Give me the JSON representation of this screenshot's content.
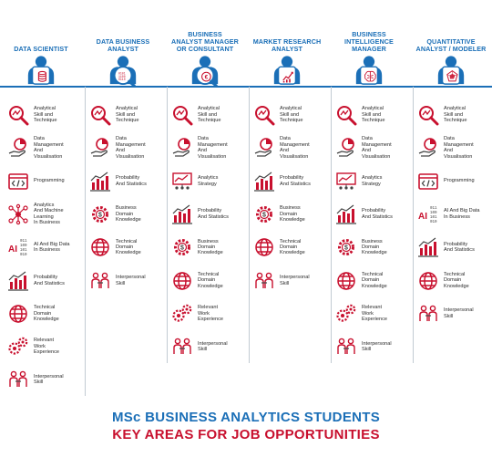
{
  "columns": [
    {
      "title": "DATA SCIENTIST",
      "badge": "database-icon",
      "items": [
        {
          "label": "Analytical\nSkill and\nTechnique",
          "icon": "magnifier-chart-icon"
        },
        {
          "label": "Data\nManagement\nAnd\nVisualisation",
          "icon": "hand-pie-chart-icon"
        },
        {
          "label": "Programming",
          "icon": "code-window-icon"
        },
        {
          "label": "Analytics\nAnd Machine\nLearning\nIn Business",
          "icon": "brain-network-icon"
        },
        {
          "label": "AI And Big Data\nIn Business",
          "icon": "ai-binary-icon"
        },
        {
          "label": "Probability\nAnd Statistics",
          "icon": "bar-chart-icon"
        },
        {
          "label": "Technical\nDomain\nKnowledge",
          "icon": "globe-icon"
        },
        {
          "label": "Relevant\nWork\nExperience",
          "icon": "gears-icon"
        },
        {
          "label": "Interpersonal\nSkill",
          "icon": "people-icon"
        }
      ]
    },
    {
      "title": "DATA BUSINESS\nANALYST",
      "badge": "binary-magnifier-icon",
      "items": [
        {
          "label": "Analytical\nSkill and\nTechnique",
          "icon": "magnifier-chart-icon"
        },
        {
          "label": "Data\nManagement\nAnd\nVisualisation",
          "icon": "hand-pie-chart-icon"
        },
        {
          "label": "Probability\nAnd Statistics",
          "icon": "bar-chart-icon"
        },
        {
          "label": "Business\nDomain\nKnowledge",
          "icon": "gear-dollar-icon"
        },
        {
          "label": "Technical\nDomain\nKnowledge",
          "icon": "globe-icon"
        },
        {
          "label": "Interpersonal\nSkill",
          "icon": "people-icon"
        }
      ]
    },
    {
      "title": "BUSINESS\nANALYST MANAGER\nOR CONSULTANT",
      "badge": "currency-magnifier-icon",
      "items": [
        {
          "label": "Analytical\nSkill and\nTechnique",
          "icon": "magnifier-chart-icon"
        },
        {
          "label": "Data\nManagement\nAnd\nVisualisation",
          "icon": "hand-pie-chart-icon"
        },
        {
          "label": "Analytics\nStrategy",
          "icon": "strategy-icon"
        },
        {
          "label": "Probability\nAnd Statistics",
          "icon": "bar-chart-icon"
        },
        {
          "label": "Business\nDomain\nKnowledge",
          "icon": "gear-dollar-icon"
        },
        {
          "label": "Technical\nDomain\nKnowledge",
          "icon": "globe-icon"
        },
        {
          "label": "Relevant\nWork\nExperience",
          "icon": "gears-icon"
        },
        {
          "label": "Interpersonal\nSkill",
          "icon": "people-icon"
        }
      ]
    },
    {
      "title": "MARKET RESEARCH\nANALYST",
      "badge": "line-chart-icon",
      "items": [
        {
          "label": "Analytical\nSkill and\nTechnique",
          "icon": "magnifier-chart-icon"
        },
        {
          "label": "Data\nManagement\nAnd\nVisualisation",
          "icon": "hand-pie-chart-icon"
        },
        {
          "label": "Probability\nAnd Statistics",
          "icon": "bar-chart-icon"
        },
        {
          "label": "Business\nDomain\nKnowledge",
          "icon": "gear-dollar-icon"
        },
        {
          "label": "Technical\nDomain\nKnowledge",
          "icon": "globe-icon"
        },
        {
          "label": "Interpersonal\nSkill",
          "icon": "people-icon"
        }
      ]
    },
    {
      "title": "BUSINESS\nINTELLIGENCE\nMANAGER",
      "badge": "brain-icon",
      "items": [
        {
          "label": "Analytical\nSkill and\nTechnique",
          "icon": "magnifier-chart-icon"
        },
        {
          "label": "Data\nManagement\nAnd\nVisualisation",
          "icon": "hand-pie-chart-icon"
        },
        {
          "label": "Analytics\nStrategy",
          "icon": "strategy-icon"
        },
        {
          "label": "Probability\nAnd Statistics",
          "icon": "bar-chart-icon"
        },
        {
          "label": "Business\nDomain\nKnowledge",
          "icon": "gear-dollar-icon"
        },
        {
          "label": "Technical\nDomain\nKnowledge",
          "icon": "globe-icon"
        },
        {
          "label": "Relevant\nWork\nExperience",
          "icon": "gears-icon"
        },
        {
          "label": "Interpersonal\nSkill",
          "icon": "people-icon"
        }
      ]
    },
    {
      "title": "QUANTITATIVE\nANALYST / MODELER",
      "badge": "radar-icon",
      "items": [
        {
          "label": "Analytical\nSkill and\nTechnique",
          "icon": "magnifier-chart-icon"
        },
        {
          "label": "Data\nManagement\nAnd\nVisualisation",
          "icon": "hand-pie-chart-icon"
        },
        {
          "label": "Programming",
          "icon": "code-window-icon"
        },
        {
          "label": "AI And Big Data\nIn Business",
          "icon": "ai-binary-icon"
        },
        {
          "label": "Probability\nAnd Statistics",
          "icon": "bar-chart-icon"
        },
        {
          "label": "Technical\nDomain\nKnowledge",
          "icon": "globe-icon"
        },
        {
          "label": "Interpersonal\nSkill",
          "icon": "people-icon"
        }
      ]
    }
  ],
  "footer": {
    "line1": "MSc BUSINESS ANALYTICS STUDENTS",
    "line2": "KEY AREAS FOR JOB OPPORTUNITIES"
  },
  "colors": {
    "blue": "#1b6fb7",
    "red": "#c8102e",
    "divider": "#c3cbd3"
  }
}
